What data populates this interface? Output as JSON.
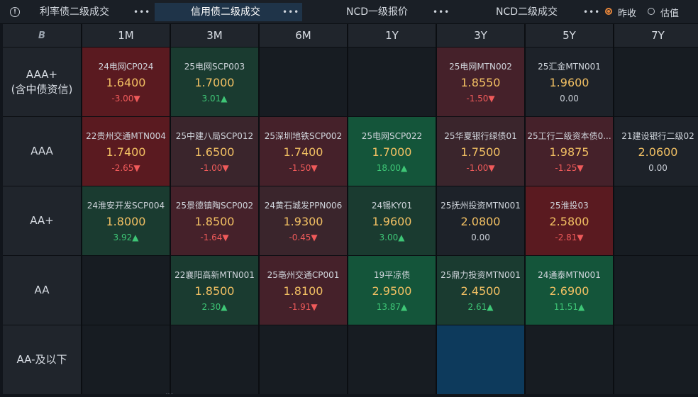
{
  "tabs": [
    {
      "label": "利率债二级成交",
      "more": "•••"
    },
    {
      "label": "信用债二级成交",
      "more": "•••"
    },
    {
      "label": "NCD一级报价",
      "more": "•••"
    },
    {
      "label": "NCD二级成交",
      "more": "•••"
    }
  ],
  "radio": {
    "prev_close": "昨收",
    "valuation": "估值"
  },
  "corner": "B",
  "columns": [
    "1M",
    "3M",
    "6M",
    "1Y",
    "3Y",
    "5Y",
    "7Y"
  ],
  "rows": [
    {
      "label_line1": "AAA+",
      "label_line2": "(含中债资信)",
      "cells": [
        {
          "name": "24电网CP024",
          "rate": "1.6400",
          "chg": "-3.00▼",
          "dir": "down",
          "tone": "c-red-strong"
        },
        {
          "name": "25电网SCP003",
          "rate": "1.7000",
          "chg": "3.01▲",
          "dir": "up",
          "tone": "c-green-mid"
        },
        null,
        null,
        {
          "name": "25电网MTN002",
          "rate": "1.8550",
          "chg": "-1.50▼",
          "dir": "down",
          "tone": "c-red-mid"
        },
        {
          "name": "25汇金MTN001",
          "rate": "1.9600",
          "chg": "0.00",
          "dir": "flat",
          "tone": "c-neutral"
        },
        null
      ]
    },
    {
      "label_line1": "AAA",
      "label_line2": "",
      "cells": [
        {
          "name": "22贵州交通MTN004",
          "rate": "1.7400",
          "chg": "-2.65▼",
          "dir": "down",
          "tone": "c-red-strong"
        },
        {
          "name": "25中建八局SCP012",
          "rate": "1.6500",
          "chg": "-1.00▼",
          "dir": "down",
          "tone": "c-red-light"
        },
        {
          "name": "25深圳地铁SCP002",
          "rate": "1.7400",
          "chg": "-1.50▼",
          "dir": "down",
          "tone": "c-red-mid"
        },
        {
          "name": "25电网SCP022",
          "rate": "1.7000",
          "chg": "18.00▲",
          "dir": "up",
          "tone": "c-green-strong"
        },
        {
          "name": "25华夏银行绿债01",
          "rate": "1.7500",
          "chg": "-1.00▼",
          "dir": "down",
          "tone": "c-red-light"
        },
        {
          "name": "25工行二级资本债0...",
          "rate": "1.9875",
          "chg": "-1.25▼",
          "dir": "down",
          "tone": "c-red-mid"
        },
        {
          "name": "21建设银行二级02",
          "rate": "2.0600",
          "chg": "0.00",
          "dir": "flat",
          "tone": "c-neutral"
        }
      ]
    },
    {
      "label_line1": "AA+",
      "label_line2": "",
      "cells": [
        {
          "name": "24淮安开发SCP004",
          "rate": "1.8000",
          "chg": "3.92▲",
          "dir": "up",
          "tone": "c-green-mid"
        },
        {
          "name": "25景德镇陶SCP002",
          "rate": "1.8500",
          "chg": "-1.64▼",
          "dir": "down",
          "tone": "c-red-mid"
        },
        {
          "name": "24黄石城发PPN006",
          "rate": "1.9300",
          "chg": "-0.45▼",
          "dir": "down",
          "tone": "c-red-light"
        },
        {
          "name": "24锡KY01",
          "rate": "1.9600",
          "chg": "3.00▲",
          "dir": "up",
          "tone": "c-green-mid"
        },
        {
          "name": "25抚州投资MTN001",
          "rate": "2.0800",
          "chg": "0.00",
          "dir": "flat",
          "tone": "c-neutral"
        },
        {
          "name": "25淮投03",
          "rate": "2.5800",
          "chg": "-2.81▼",
          "dir": "down",
          "tone": "c-red-strong"
        },
        null
      ]
    },
    {
      "label_line1": "AA",
      "label_line2": "",
      "cells": [
        null,
        {
          "name": "22襄阳高新MTN001",
          "rate": "1.8500",
          "chg": "2.30▲",
          "dir": "up",
          "tone": "c-green-mid"
        },
        {
          "name": "25亳州交通CP001",
          "rate": "1.8100",
          "chg": "-1.91▼",
          "dir": "down",
          "tone": "c-red-mid"
        },
        {
          "name": "19平凉债",
          "rate": "2.9500",
          "chg": "13.87▲",
          "dir": "up",
          "tone": "c-green-strong"
        },
        {
          "name": "25鼎力投资MTN001",
          "rate": "2.4500",
          "chg": "2.61▲",
          "dir": "up",
          "tone": "c-green-mid"
        },
        {
          "name": "24通泰MTN001",
          "rate": "2.6900",
          "chg": "11.51▲",
          "dir": "up",
          "tone": "c-green-strong"
        },
        null
      ]
    },
    {
      "label_line1": "AA-及以下",
      "label_line2": "",
      "cells": [
        null,
        null,
        null,
        null,
        "blue",
        null,
        null
      ]
    }
  ]
}
